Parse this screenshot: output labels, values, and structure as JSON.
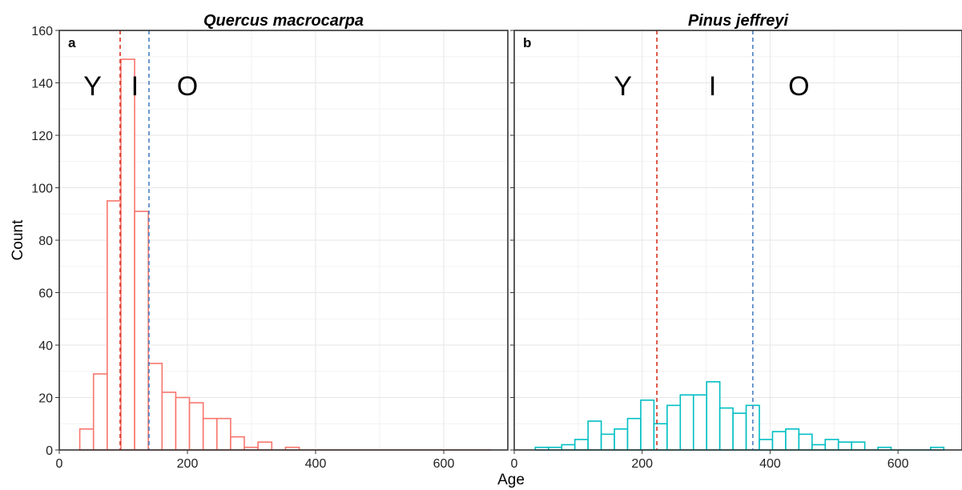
{
  "chart_data": [
    {
      "type": "bar",
      "panel_label": "a",
      "title": "Quercus macrocarpa",
      "xlabel": "Age",
      "ylabel": "Count",
      "xlim": [
        0,
        700
      ],
      "ylim": [
        0,
        160
      ],
      "x_ticks": [
        0,
        200,
        400,
        600
      ],
      "y_ticks": [
        0,
        20,
        40,
        60,
        80,
        100,
        120,
        140,
        160
      ],
      "grid": true,
      "bar_color": "#F8766D",
      "bin_width": 21.4,
      "bins": [
        {
          "x0": 32,
          "count": 8
        },
        {
          "x0": 53.4,
          "count": 29
        },
        {
          "x0": 74.8,
          "count": 95
        },
        {
          "x0": 96.2,
          "count": 149
        },
        {
          "x0": 117.6,
          "count": 91
        },
        {
          "x0": 139,
          "count": 33
        },
        {
          "x0": 160.4,
          "count": 22
        },
        {
          "x0": 181.8,
          "count": 20
        },
        {
          "x0": 203.2,
          "count": 18
        },
        {
          "x0": 224.6,
          "count": 12
        },
        {
          "x0": 246,
          "count": 12
        },
        {
          "x0": 267.4,
          "count": 5
        },
        {
          "x0": 288.8,
          "count": 1
        },
        {
          "x0": 310.2,
          "count": 3
        },
        {
          "x0": 331.6,
          "count": 0
        },
        {
          "x0": 353,
          "count": 1
        },
        {
          "x0": 374.4,
          "count": 0
        },
        {
          "x0": 395.8,
          "count": 0
        },
        {
          "x0": 417.2,
          "count": 0
        },
        {
          "x0": 438.6,
          "count": 0
        },
        {
          "x0": 460,
          "count": 0
        },
        {
          "x0": 481.4,
          "count": 0
        },
        {
          "x0": 502.8,
          "count": 0
        },
        {
          "x0": 524.2,
          "count": 0
        },
        {
          "x0": 545.6,
          "count": 0
        },
        {
          "x0": 567,
          "count": 0
        },
        {
          "x0": 588.4,
          "count": 0
        },
        {
          "x0": 609.8,
          "count": 0
        },
        {
          "x0": 631.2,
          "count": 0
        },
        {
          "x0": 652.6,
          "count": 0
        }
      ],
      "vlines": [
        {
          "x": 95,
          "color": "#D7301F"
        },
        {
          "x": 140,
          "color": "#4A7FC1"
        }
      ],
      "group_labels": [
        {
          "text": "Y",
          "x": 52,
          "y": 139
        },
        {
          "text": "I",
          "x": 118,
          "y": 139
        },
        {
          "text": "O",
          "x": 200,
          "y": 139
        }
      ]
    },
    {
      "type": "bar",
      "panel_label": "b",
      "title": "Pinus jeffreyi",
      "xlabel": "Age",
      "ylabel": "Count",
      "xlim": [
        0,
        700
      ],
      "ylim": [
        0,
        160
      ],
      "x_ticks": [
        0,
        200,
        400,
        600
      ],
      "y_ticks": [
        0,
        20,
        40,
        60,
        80,
        100,
        120,
        140,
        160
      ],
      "grid": true,
      "bar_color": "#00BFC4",
      "bin_width": 20.6,
      "bins": [
        {
          "x0": 33,
          "count": 1
        },
        {
          "x0": 53.6,
          "count": 1
        },
        {
          "x0": 74.2,
          "count": 2
        },
        {
          "x0": 94.8,
          "count": 4
        },
        {
          "x0": 115.4,
          "count": 11
        },
        {
          "x0": 136,
          "count": 6
        },
        {
          "x0": 156.6,
          "count": 8
        },
        {
          "x0": 177.2,
          "count": 12
        },
        {
          "x0": 197.8,
          "count": 19
        },
        {
          "x0": 218.4,
          "count": 10
        },
        {
          "x0": 239,
          "count": 17
        },
        {
          "x0": 259.6,
          "count": 21
        },
        {
          "x0": 280.2,
          "count": 21
        },
        {
          "x0": 300.8,
          "count": 26
        },
        {
          "x0": 321.4,
          "count": 16
        },
        {
          "x0": 342,
          "count": 14
        },
        {
          "x0": 362.6,
          "count": 17
        },
        {
          "x0": 383.2,
          "count": 4
        },
        {
          "x0": 403.8,
          "count": 7
        },
        {
          "x0": 424.4,
          "count": 8
        },
        {
          "x0": 445,
          "count": 6
        },
        {
          "x0": 465.6,
          "count": 2
        },
        {
          "x0": 486.2,
          "count": 4
        },
        {
          "x0": 506.8,
          "count": 3
        },
        {
          "x0": 527.4,
          "count": 3
        },
        {
          "x0": 548,
          "count": 0
        },
        {
          "x0": 568.6,
          "count": 1
        },
        {
          "x0": 589.2,
          "count": 0
        },
        {
          "x0": 609.8,
          "count": 0
        },
        {
          "x0": 630.4,
          "count": 0
        },
        {
          "x0": 651,
          "count": 1
        }
      ],
      "vlines": [
        {
          "x": 223,
          "color": "#D7301F"
        },
        {
          "x": 373,
          "color": "#4A7FC1"
        }
      ],
      "group_labels": [
        {
          "text": "Y",
          "x": 170,
          "y": 139
        },
        {
          "text": "I",
          "x": 310,
          "y": 139
        },
        {
          "text": "O",
          "x": 445,
          "y": 139
        }
      ]
    }
  ]
}
